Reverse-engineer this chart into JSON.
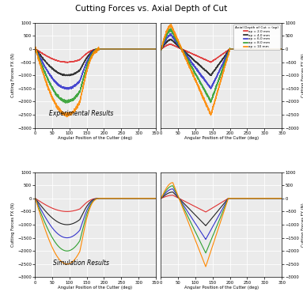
{
  "title": "Cutting Forces vs. Axial Depth of Cut",
  "ap_values": [
    2.0,
    4.0,
    6.0,
    8.0,
    10.0
  ],
  "ap_colors": [
    "#e03030",
    "#222222",
    "#3535cc",
    "#30a030",
    "#ff8800"
  ],
  "legend_labels": [
    "ap = 2.0 mm",
    "ap = 4.0 mm",
    "ap = 6.0 mm",
    "ap = 8.0 mm",
    "ap = 10 mm"
  ],
  "legend_title": "Axial Depth of Cut = (ap)",
  "xlabel": "Angular Position of the Cutter (deg)",
  "ylabel_fx": "Cutting Forces FX (N)",
  "ylabel_fy": "Cutting Forces FY (N)",
  "ylim": [
    -3000,
    1000
  ],
  "yticks": [
    -3000,
    -2500,
    -2000,
    -1500,
    -1000,
    -500,
    0,
    500,
    1000
  ],
  "xlim": [
    0,
    350
  ],
  "xticks": [
    0,
    50,
    100,
    150,
    200,
    250,
    300,
    350
  ],
  "label_exp": "Experimental Results",
  "label_sim": "Simulation Results",
  "background_color": "#ebebeb"
}
